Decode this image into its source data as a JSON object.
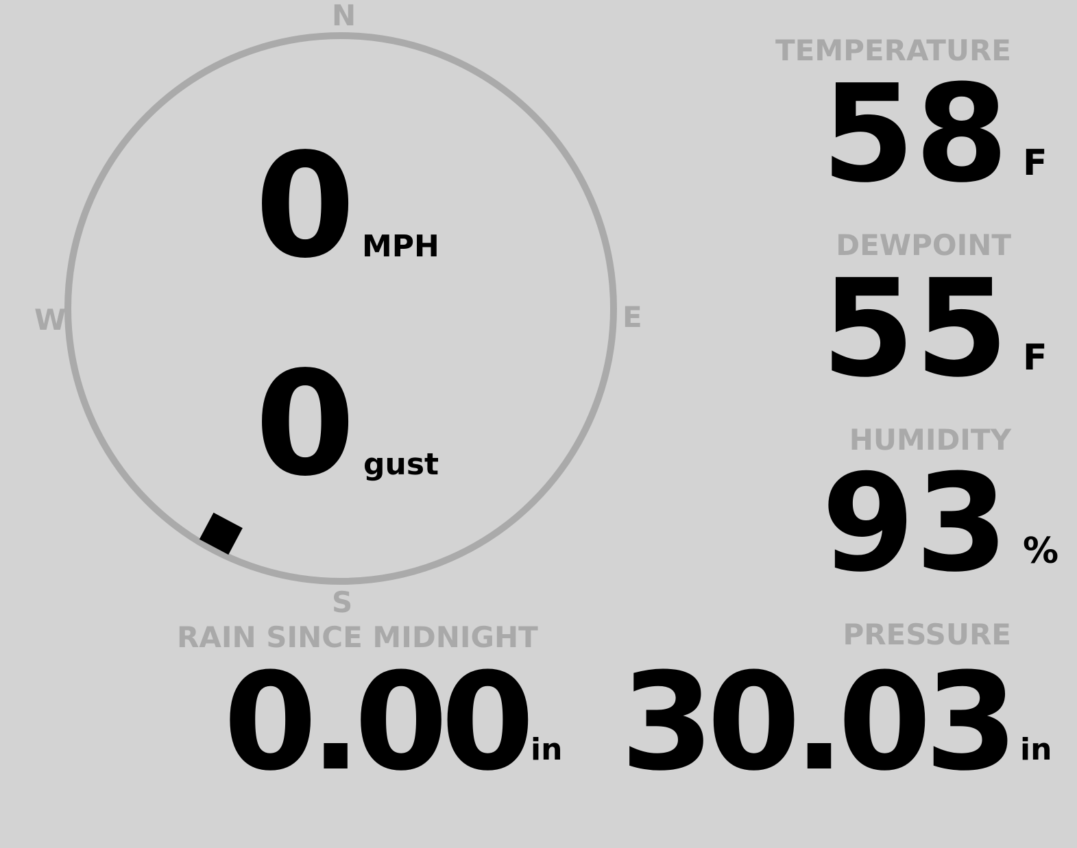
{
  "wind": {
    "speed": "0",
    "speed_unit": "MPH",
    "gust": "0",
    "gust_unit": "gust",
    "direction_degrees": 208,
    "compass": {
      "n": "N",
      "e": "E",
      "s": "S",
      "w": "W"
    }
  },
  "temperature": {
    "label": "TEMPERATURE",
    "value": "58",
    "unit": "F"
  },
  "dewpoint": {
    "label": "DEWPOINT",
    "value": "55",
    "unit": "F"
  },
  "humidity": {
    "label": "HUMIDITY",
    "value": "93",
    "unit": "%"
  },
  "rain": {
    "label": "RAIN SINCE MIDNIGHT",
    "value": "0.00",
    "unit": "in"
  },
  "pressure": {
    "label": "PRESSURE",
    "value": "30.03",
    "unit": "in"
  },
  "colors": {
    "background": "#d3d3d3",
    "label": "#a9a9a9",
    "value": "#000000",
    "compass_ring": "#aaaaaa"
  }
}
